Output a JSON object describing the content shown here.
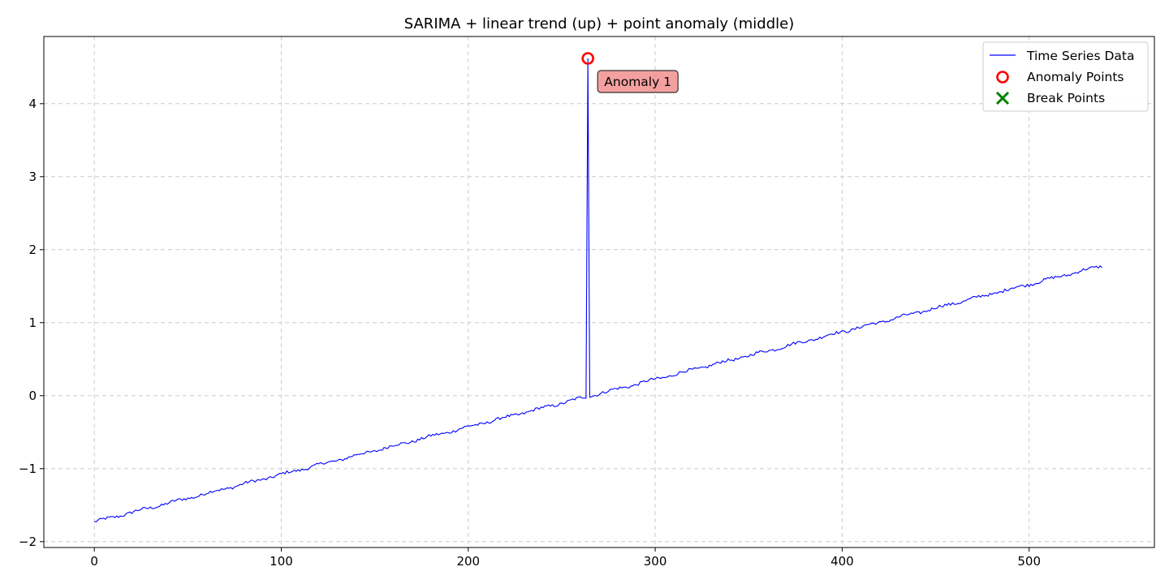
{
  "chart_data": {
    "type": "line",
    "title": "SARIMA + linear trend (up) + point anomaly (middle)",
    "xlabel": "",
    "ylabel": "",
    "xlim": [
      -27,
      567
    ],
    "ylim": [
      -2.08,
      4.92
    ],
    "xticks": [
      0,
      100,
      200,
      300,
      400,
      500
    ],
    "xtick_labels": [
      "0",
      "100",
      "200",
      "300",
      "400",
      "500"
    ],
    "yticks": [
      -2,
      -1,
      0,
      1,
      2,
      3,
      4
    ],
    "ytick_labels": [
      "−2",
      "−1",
      "0",
      "1",
      "2",
      "3",
      "4"
    ],
    "grid": true,
    "legend_position": "upper right",
    "colors": {
      "series": "#0000ff",
      "anomaly": "#ff0000",
      "break": "#008000",
      "annotation_fill": "#f08080",
      "grid": "#cccccc"
    },
    "series": [
      {
        "name": "Time Series Data",
        "trend": {
          "x_start": 0,
          "x_end": 539,
          "y_start": -1.73,
          "y_end": 1.78
        },
        "noise_amplitude": 0.02,
        "points": [
          {
            "x": 0,
            "y": -1.73
          },
          {
            "x": 263,
            "y": -0.04
          },
          {
            "x": 264,
            "y": 4.62
          },
          {
            "x": 265,
            "y": -0.06
          },
          {
            "x": 539,
            "y": 1.78
          }
        ]
      }
    ],
    "anomaly_points": [
      {
        "x": 264,
        "y": 4.62,
        "label": "Anomaly 1"
      }
    ],
    "break_points": [],
    "legend": [
      {
        "label": "Time Series Data",
        "marker": "line"
      },
      {
        "label": "Anomaly Points",
        "marker": "circle"
      },
      {
        "label": "Break Points",
        "marker": "x"
      }
    ]
  }
}
